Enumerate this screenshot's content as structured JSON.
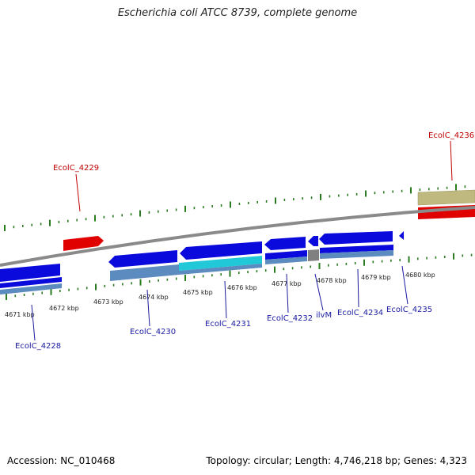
{
  "title": "Escherichia coli ATCC 8739, complete genome",
  "footer": {
    "accession": "Accession: NC_010468",
    "stats": "Topology: circular; Length: 4,746,218 bp; Genes: 4,323"
  },
  "colors": {
    "backbone": "#888888",
    "gene_blue": "#0a0adc",
    "cds_steel": "#5b8bbf",
    "highlight_cyan": "#20c8d8",
    "gene_red": "#e00000",
    "feature_tan": "#bfb980",
    "gray_block": "#808080",
    "tick_green": "#2a7a20",
    "label_blue": "#1a1aa0",
    "label_red": "#c00000"
  },
  "ticks": [
    "4671 kbp",
    "4672 kbp",
    "4673 kbp",
    "4674 kbp",
    "4675 kbp",
    "4676 kbp",
    "4677 kbp",
    "4678 kbp",
    "4679 kbp",
    "4680 kbp"
  ],
  "genes": {
    "top": [
      "EcolC_4229",
      "EcolC_4236"
    ],
    "bottom": [
      "EcolC_4228",
      "EcolC_4230",
      "EcolC_4231",
      "EcolC_4232",
      "ilvM",
      "EcolC_4234",
      "EcolC_4235"
    ]
  }
}
